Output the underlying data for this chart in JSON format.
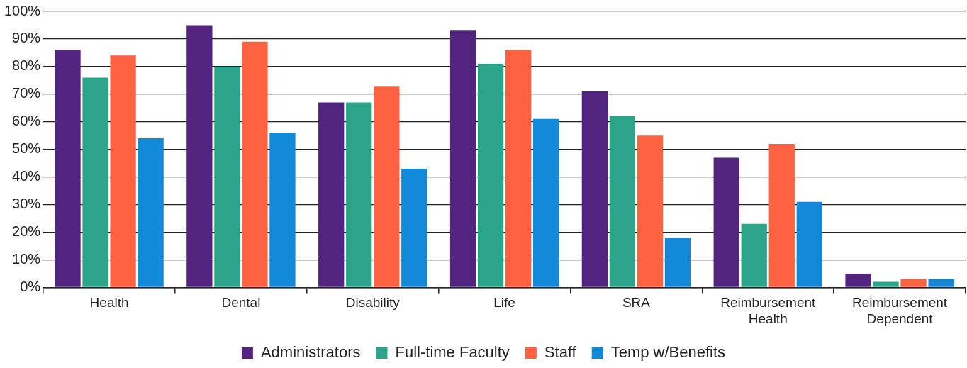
{
  "chart_data": {
    "type": "bar",
    "categories": [
      "Health",
      "Dental",
      "Disability",
      "Life",
      "SRA",
      "Reimbursement Health",
      "Reimbursement Dependent"
    ],
    "series": [
      {
        "name": "Administrators",
        "color": "#52247f",
        "values": [
          86,
          95,
          67,
          93,
          71,
          47,
          5
        ]
      },
      {
        "name": "Full-time Faculty",
        "color": "#2aa58a",
        "values": [
          76,
          80,
          67,
          81,
          62,
          23,
          2
        ]
      },
      {
        "name": "Staff",
        "color": "#ff6240",
        "values": [
          84,
          89,
          73,
          86,
          55,
          52,
          3
        ]
      },
      {
        "name": "Temp w/Benefits",
        "color": "#1288d9",
        "values": [
          54,
          56,
          43,
          61,
          18,
          31,
          3
        ]
      }
    ],
    "ylim": [
      0,
      100
    ],
    "yticks": [
      {
        "value": 0,
        "label": "0%"
      },
      {
        "value": 10,
        "label": "10%"
      },
      {
        "value": 20,
        "label": "20%"
      },
      {
        "value": 30,
        "label": "30%"
      },
      {
        "value": 40,
        "label": "40%"
      },
      {
        "value": 50,
        "label": "50%"
      },
      {
        "value": 60,
        "label": "60%"
      },
      {
        "value": 70,
        "label": "70%"
      },
      {
        "value": 80,
        "label": "80%"
      },
      {
        "value": 90,
        "label": "90%"
      },
      {
        "value": 100,
        "label": "100%"
      }
    ],
    "grid": "y",
    "legend": "bottom"
  }
}
